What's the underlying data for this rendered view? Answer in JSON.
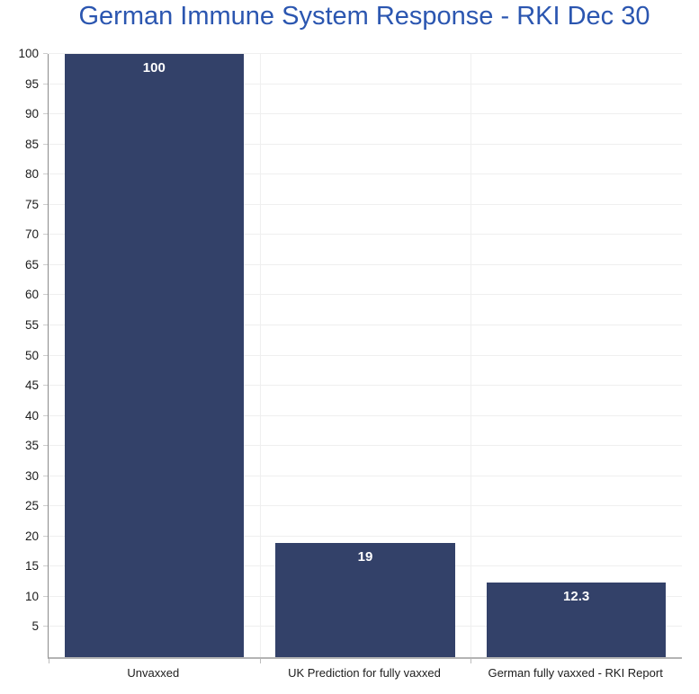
{
  "chart_data": {
    "type": "bar",
    "title": "German Immune System Response - RKI Dec 30",
    "categories": [
      "Unvaxxed",
      "UK Prediction for fully vaxxed",
      "German fully vaxxed - RKI Report"
    ],
    "values": [
      100,
      19,
      12.3
    ],
    "value_labels": [
      "100",
      "19",
      "12.3"
    ],
    "xlabel": "",
    "ylabel": "",
    "ylim": [
      0,
      100
    ],
    "ytick_step": 5,
    "yticks": [
      5,
      10,
      15,
      20,
      25,
      30,
      35,
      40,
      45,
      50,
      55,
      60,
      65,
      70,
      75,
      80,
      85,
      90,
      95,
      100
    ],
    "legend": "none",
    "grid": "horizontal gridlines every 5 units; faint vertical gridlines at category boundaries",
    "colors": {
      "bar": "#334169",
      "title": "#2b56b0",
      "grid": "#efefef",
      "value_label": "#ffffff",
      "tick_label": "#1c1c1c",
      "y_axis_line": "#8c8c8c",
      "x_axis_line": "#b4b4b4",
      "background": "#ffffff"
    }
  }
}
